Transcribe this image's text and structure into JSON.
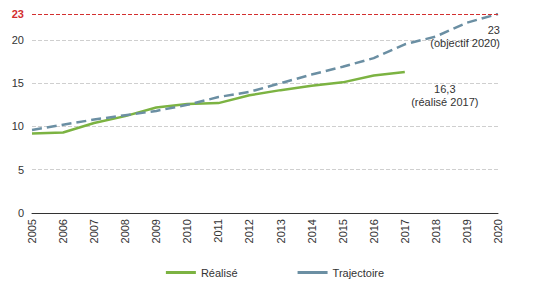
{
  "chart_data": {
    "type": "line",
    "categories": [
      "2005",
      "2006",
      "2007",
      "2008",
      "2009",
      "2010",
      "2011",
      "2012",
      "2013",
      "2014",
      "2015",
      "2016",
      "2017",
      "2018",
      "2019",
      "2020"
    ],
    "series": [
      {
        "name": "Réalisé",
        "color": "#7cb342",
        "line_style": "solid",
        "values": [
          9.2,
          9.3,
          10.4,
          11.2,
          12.2,
          12.6,
          12.7,
          13.6,
          14.2,
          14.7,
          15.1,
          15.9,
          16.3,
          null,
          null,
          null
        ]
      },
      {
        "name": "Trajectoire",
        "color": "#6b8fa3",
        "line_style": "dashed",
        "values": [
          9.6,
          10.2,
          10.8,
          11.3,
          11.8,
          12.5,
          13.4,
          14.0,
          15.0,
          16.0,
          16.9,
          17.9,
          19.5,
          20.4,
          22.0,
          23
        ]
      }
    ],
    "ylim": [
      0,
      23
    ],
    "yticks": [
      0,
      5,
      10,
      15,
      20,
      23
    ],
    "grid": true,
    "legend": "bottom",
    "annotations": [
      {
        "text": [
          "16,3",
          "(réalisé 2017)"
        ],
        "x": "2017",
        "y": 16.3
      },
      {
        "text": [
          "23",
          "(objectif 2020)"
        ],
        "x": "2020",
        "y": 23
      }
    ]
  }
}
